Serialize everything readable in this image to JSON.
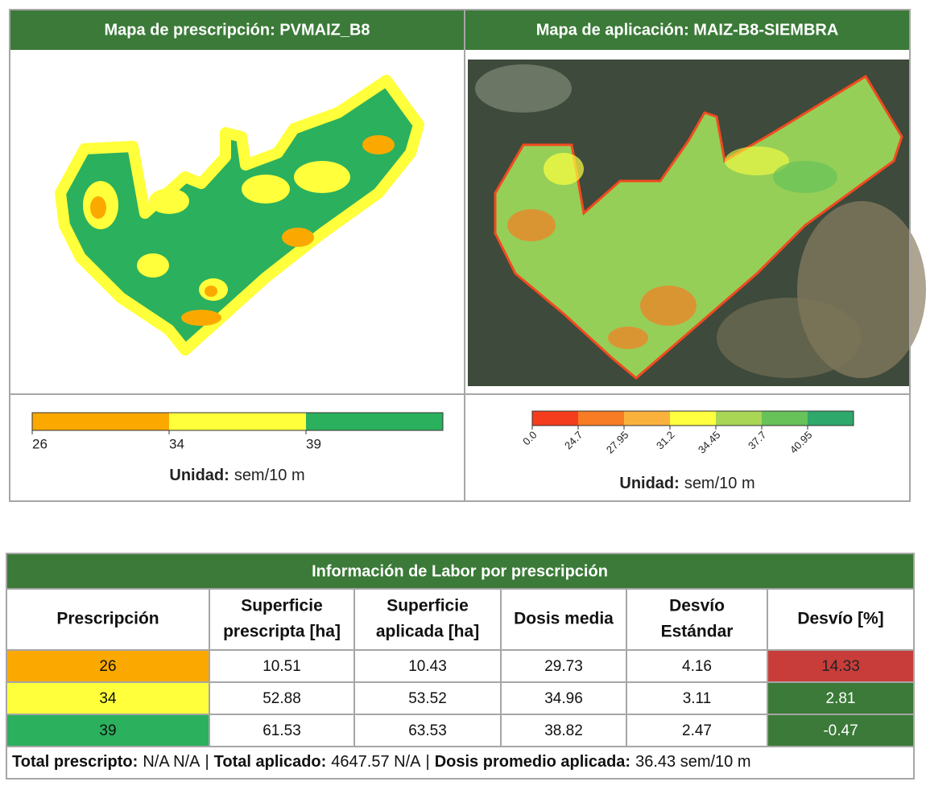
{
  "header_color": "#3b7a38",
  "panels": [
    {
      "title": "Mapa de prescripción: PVMAIZ_B8",
      "legend": {
        "ticks": [
          "26",
          "34",
          "39"
        ],
        "colors": [
          "#fba900",
          "#ffff3b",
          "#2bb05e"
        ]
      },
      "unit_label": "Unidad:",
      "unit": "sem/10 m"
    },
    {
      "title": "Mapa de aplicación: MAIZ-B8-SIEMBRA",
      "legend": {
        "ticks": [
          "0.0",
          "24.7",
          "27.95",
          "31.2",
          "34.45",
          "37.7",
          "40.95"
        ],
        "colors": [
          "#f43d1c",
          "#f87c23",
          "#fbb23d",
          "#ffff40",
          "#a9d654",
          "#67c25a",
          "#2ea86b"
        ]
      },
      "unit_label": "Unidad:",
      "unit": "sem/10 m"
    }
  ],
  "table": {
    "title": "Información de Labor por prescripción",
    "headers": [
      [
        "Prescripción"
      ],
      [
        "Superficie",
        "prescripta [ha]"
      ],
      [
        "Superficie",
        "aplicada [ha]"
      ],
      [
        "Dosis media"
      ],
      [
        "Desvío",
        "Estándar"
      ],
      [
        "Desvío [%]"
      ]
    ],
    "rows": [
      [
        "26",
        "10.51",
        "10.43",
        "29.73",
        "4.16",
        "14.33"
      ],
      [
        "34",
        "52.88",
        "53.52",
        "34.96",
        "3.11",
        "2.81"
      ],
      [
        "39",
        "61.53",
        "63.53",
        "38.82",
        "2.47",
        "-0.47"
      ]
    ],
    "row_colors": [
      "#fba900",
      "#ffff3b",
      "#2bb05e"
    ],
    "deviation_colors": [
      "#c83d3a",
      "#3b7a38",
      "#3b7a38"
    ]
  },
  "footer": [
    {
      "label": "Total prescripto:",
      "value": "N/A N/A"
    },
    {
      "label": "Total aplicado:",
      "value": "4647.57 N/A"
    },
    {
      "label": "Dosis promedio aplicada:",
      "value": "36.43 sem/10 m"
    }
  ],
  "footer_separator": "|"
}
